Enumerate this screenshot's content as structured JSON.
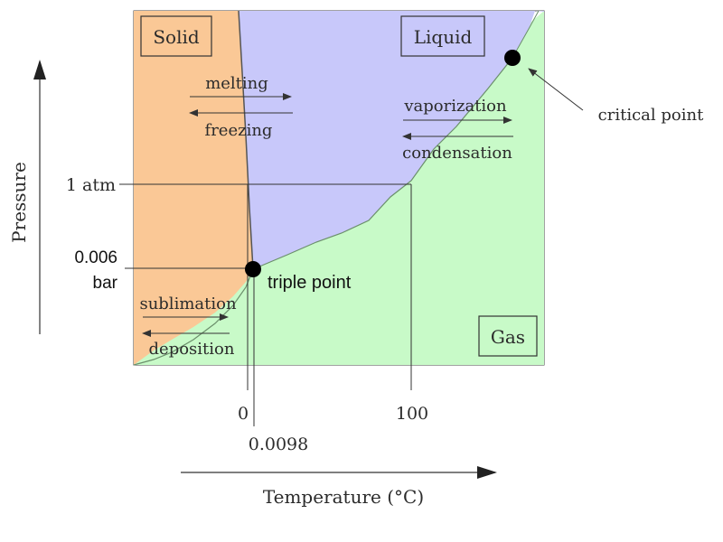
{
  "diagram": {
    "regions": {
      "solid": "Solid",
      "liquid": "Liquid",
      "gas": "Gas"
    },
    "transitions": {
      "melting": "melting",
      "freezing": "freezing",
      "vaporization": "vaporization",
      "condensation": "condensation",
      "sublimation": "sublimation",
      "deposition": "deposition"
    },
    "points": {
      "critical": "critical point",
      "triple": "triple point"
    },
    "axes": {
      "y_label": "Pressure",
      "x_label": "Temperature (°C)",
      "y_ticks": {
        "atm": "1 atm",
        "bar_value": "0.006",
        "bar_unit": "bar"
      },
      "x_ticks": {
        "zero": "0",
        "triple": "0.0098",
        "hundred": "100"
      }
    },
    "colors": {
      "solid": "#fac896",
      "liquid": "#c8c8fa",
      "gas": "#c8fac8"
    }
  }
}
